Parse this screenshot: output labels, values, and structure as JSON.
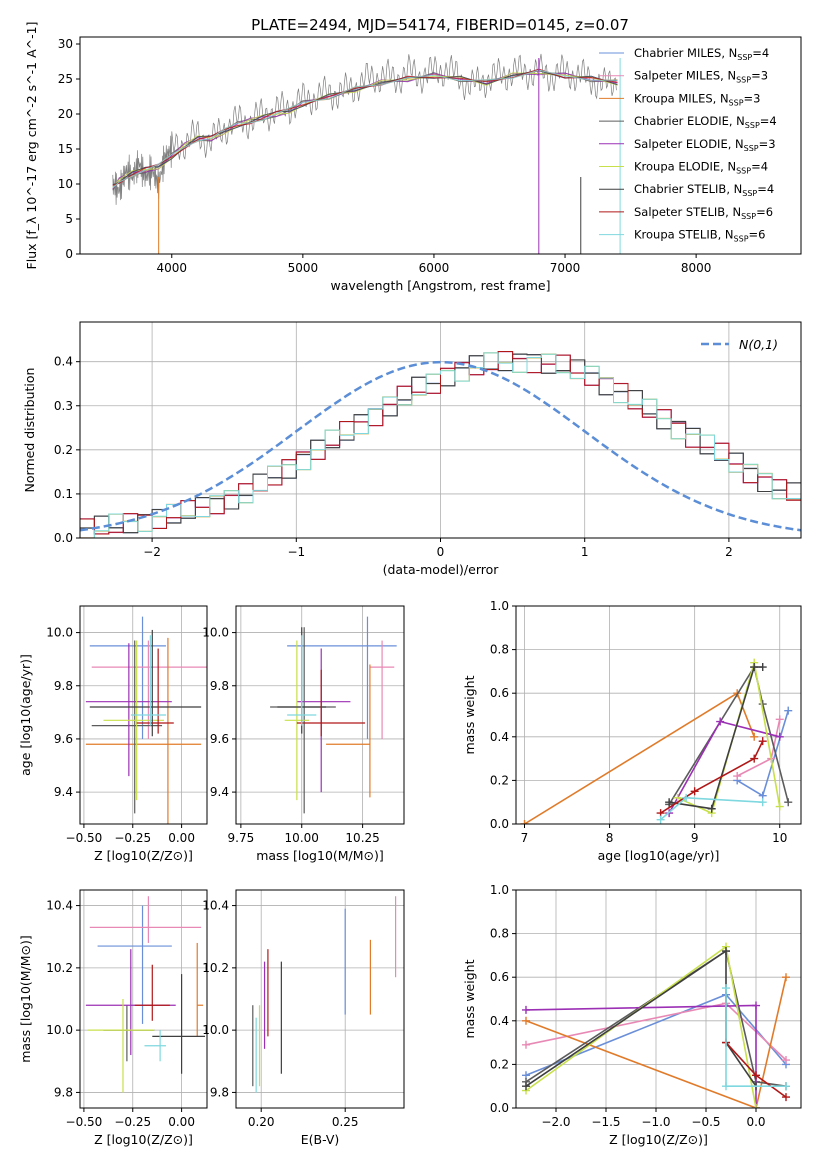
{
  "figure_title": "PLATE=2494, MJD=54174, FIBERID=0145, z=0.07",
  "chart_data": [
    {
      "id": "spectrum",
      "type": "line",
      "title": "PLATE=2494, MJD=54174, FIBERID=0145, z=0.07",
      "xlabel": "wavelength [Angstrom, rest frame]",
      "ylabel": "Flux [f_λ 10^-17 erg cm^-2 s^-1 A^-1]",
      "xlim": [
        3300,
        8800
      ],
      "ylim": [
        0,
        31
      ],
      "xticks": [
        4000,
        5000,
        6000,
        7000,
        8000
      ],
      "yticks": [
        0,
        5,
        10,
        15,
        20,
        25,
        30
      ],
      "grid": false,
      "legend_position": "right",
      "observed": {
        "color": "#7f7f7f",
        "x": [
          3550,
          3600,
          3650,
          3700,
          3750,
          3800,
          3850,
          3900,
          3950,
          4000,
          4100,
          4200,
          4300,
          4400,
          4500,
          4600,
          4700,
          4800,
          4900,
          5000,
          5100,
          5200,
          5300,
          5400,
          5500,
          5600,
          5700,
          5800,
          5900,
          6000,
          6100,
          6200,
          6300,
          6400,
          6500,
          6600,
          6700,
          6800,
          6900,
          7000,
          7100,
          7200,
          7300,
          7400
        ],
        "y": [
          10,
          9,
          12,
          11,
          13,
          11,
          12,
          10,
          14,
          15,
          16,
          17,
          16,
          18,
          19,
          19,
          20,
          20.5,
          21,
          22,
          22.5,
          23,
          23,
          24,
          25,
          25.5,
          25,
          26,
          25.5,
          26,
          26.5,
          25,
          24,
          25,
          25.5,
          26,
          26,
          26,
          25.5,
          26,
          25.5,
          25,
          24,
          25
        ]
      },
      "series": [
        {
          "name": "Chabrier MILES",
          "nssp": 4,
          "color": "#6a8fd8"
        },
        {
          "name": "Salpeter MILES",
          "nssp": 3,
          "color": "#e889b5"
        },
        {
          "name": "Kroupa MILES",
          "nssp": 3,
          "color": "#e07b2a"
        },
        {
          "name": "Chabrier ELODIE",
          "nssp": 4,
          "color": "#5c5c5c"
        },
        {
          "name": "Salpeter ELODIE",
          "nssp": 3,
          "color": "#9b30b5"
        },
        {
          "name": "Kroupa ELODIE",
          "nssp": 4,
          "color": "#c8e04a"
        },
        {
          "name": "Chabrier STELIB",
          "nssp": 4,
          "color": "#3f3f3f"
        },
        {
          "name": "Salpeter STELIB",
          "nssp": 6,
          "color": "#b01818"
        },
        {
          "name": "Kroupa STELIB",
          "nssp": 6,
          "color": "#7fd8df"
        }
      ],
      "model": {
        "x": [
          3550,
          3600,
          3700,
          3800,
          3900,
          4000,
          4100,
          4200,
          4300,
          4400,
          4500,
          4600,
          4700,
          4800,
          4900,
          5000,
          5200,
          5400,
          5600,
          5800,
          6000,
          6200,
          6400,
          6600,
          6800,
          7000,
          7200,
          7400
        ],
        "y": [
          9.5,
          10.5,
          11.5,
          12,
          12.5,
          14,
          15.5,
          16.5,
          16.5,
          17.5,
          18.5,
          19,
          19.5,
          20,
          20.5,
          21.5,
          22.5,
          23.5,
          24.5,
          25,
          25.5,
          25,
          24.5,
          25.5,
          26,
          25.5,
          25,
          24.5
        ]
      },
      "spikes": [
        3900,
        6800,
        7120,
        7420
      ]
    },
    {
      "id": "residuals",
      "type": "histogram",
      "xlabel": "(data-model)/error",
      "ylabel": "Normed distribution",
      "xlim": [
        -2.5,
        2.5
      ],
      "ylim": [
        0,
        0.49
      ],
      "xticks": [
        -2,
        -1,
        0,
        1,
        2
      ],
      "yticks": [
        0,
        0.1,
        0.2,
        0.3,
        0.4
      ],
      "grid": true,
      "legend_position": "top-right",
      "reference_curve": {
        "name": "N(0,1)",
        "color": "#5b8ed6",
        "mean": 0,
        "sigma": 1
      },
      "bin_width": 0.1,
      "bin_start": -2.5,
      "base_profile": [
        0.022,
        0.025,
        0.03,
        0.035,
        0.04,
        0.045,
        0.052,
        0.06,
        0.07,
        0.08,
        0.09,
        0.1,
        0.12,
        0.14,
        0.16,
        0.18,
        0.2,
        0.22,
        0.24,
        0.26,
        0.28,
        0.3,
        0.32,
        0.34,
        0.35,
        0.37,
        0.38,
        0.39,
        0.395,
        0.4,
        0.4,
        0.4,
        0.395,
        0.39,
        0.38,
        0.37,
        0.35,
        0.33,
        0.31,
        0.29,
        0.27,
        0.25,
        0.23,
        0.21,
        0.19,
        0.17,
        0.15,
        0.13,
        0.11,
        0.1,
        0.09,
        0.08,
        0.07,
        0.06,
        0.05,
        0.045,
        0.04,
        0.035,
        0.03,
        0.025
      ]
    },
    {
      "id": "age-vs-Z",
      "type": "errorbar",
      "xlabel": "Z [log10(Z/Z⊙)]",
      "ylabel": "age [log10(age/yr)]",
      "xlim": [
        -0.52,
        0.13
      ],
      "ylim": [
        9.28,
        10.1
      ],
      "xticks": [
        -0.5,
        -0.25,
        0.0
      ],
      "yticks": [
        9.4,
        9.6,
        9.8,
        10.0
      ],
      "grid": true,
      "points": [
        {
          "x": -0.2,
          "y": 9.95,
          "xerr": [
            0.27,
            0.12
          ],
          "yerr": [
            0.35,
            0.11
          ],
          "color": "#6a8fd8"
        },
        {
          "x": -0.17,
          "y": 9.87,
          "xerr": [
            0.29,
            0.31
          ],
          "yerr": [
            0.27,
            0.1
          ],
          "color": "#e889b5"
        },
        {
          "x": -0.07,
          "y": 9.58,
          "xerr": [
            0.42,
            0.17
          ],
          "yerr": [
            0.35,
            0.4
          ],
          "color": "#e07b2a"
        },
        {
          "x": -0.24,
          "y": 9.65,
          "xerr": [
            0.22,
            0.14
          ],
          "yerr": [
            0.33,
            0.32
          ],
          "color": "#5c5c5c"
        },
        {
          "x": -0.27,
          "y": 9.74,
          "xerr": [
            0.22,
            0.22
          ],
          "yerr": [
            0.28,
            0.22
          ],
          "color": "#9b30b5"
        },
        {
          "x": -0.23,
          "y": 9.67,
          "xerr": [
            0.17,
            0.14
          ],
          "yerr": [
            0.3,
            0.3
          ],
          "color": "#c8e04a"
        },
        {
          "x": -0.15,
          "y": 9.72,
          "xerr": [
            0.32,
            0.25
          ],
          "yerr": [
            0.11,
            0.29
          ],
          "color": "#3f3f3f"
        },
        {
          "x": -0.12,
          "y": 9.66,
          "xerr": [
            0.11,
            0.08
          ],
          "yerr": [
            0.04,
            0.28
          ],
          "color": "#b01818"
        },
        {
          "x": -0.16,
          "y": 9.69,
          "xerr": [
            0.1,
            0.08
          ],
          "yerr": [
            0.04,
            0.3
          ],
          "color": "#7fd8df"
        }
      ]
    },
    {
      "id": "age-vs-mass",
      "type": "errorbar",
      "xlabel": "mass [log10(M/M⊙)]",
      "ylabel": "",
      "xlim": [
        9.73,
        10.42
      ],
      "ylim": [
        9.28,
        10.1
      ],
      "xticks": [
        9.75,
        10.0,
        10.25
      ],
      "yticks": [
        9.4,
        9.6,
        9.8,
        10.0
      ],
      "grid": true,
      "points": [
        {
          "x": 10.27,
          "y": 9.95,
          "xerr": [
            0.33,
            0.12
          ],
          "yerr": [
            0.35,
            0.11
          ],
          "color": "#6a8fd8"
        },
        {
          "x": 10.33,
          "y": 9.87,
          "xerr": [
            0.05,
            0.05
          ],
          "yerr": [
            0.27,
            0.1
          ],
          "color": "#e889b5"
        },
        {
          "x": 10.28,
          "y": 9.58,
          "xerr": [
            0.18,
            0.0
          ],
          "yerr": [
            0.2,
            0.3
          ],
          "color": "#e07b2a"
        },
        {
          "x": 10.01,
          "y": 9.72,
          "xerr": [
            0.14,
            0.13
          ],
          "yerr": [
            0.4,
            0.3
          ],
          "color": "#5c5c5c"
        },
        {
          "x": 10.08,
          "y": 9.74,
          "xerr": [
            0.1,
            0.12
          ],
          "yerr": [
            0.34,
            0.2
          ],
          "color": "#9b30b5"
        },
        {
          "x": 9.98,
          "y": 9.67,
          "xerr": [
            0.05,
            0.05
          ],
          "yerr": [
            0.3,
            0.3
          ],
          "color": "#c8e04a"
        },
        {
          "x": 10.0,
          "y": 9.72,
          "xerr": [
            0.1,
            0.1
          ],
          "yerr": [
            0.1,
            0.3
          ],
          "color": "#3f3f3f"
        },
        {
          "x": 10.08,
          "y": 9.66,
          "xerr": [
            0.1,
            0.18
          ],
          "yerr": [
            0.05,
            0.2
          ],
          "color": "#b01818"
        },
        {
          "x": 10.0,
          "y": 9.69,
          "xerr": [
            0.06,
            0.06
          ],
          "yerr": [
            0.04,
            0.3
          ],
          "color": "#7fd8df"
        }
      ]
    },
    {
      "id": "weight-vs-age",
      "type": "line",
      "xlabel": "age [log10(age/yr)]",
      "ylabel": "mass weight",
      "xlim": [
        6.9,
        10.25
      ],
      "ylim": [
        0,
        1
      ],
      "xticks": [
        7,
        8,
        9,
        10
      ],
      "yticks": [
        0.0,
        0.2,
        0.4,
        0.6,
        0.8,
        1.0
      ],
      "grid": true,
      "series": [
        {
          "color": "#6a8fd8",
          "x": [
            9.5,
            9.8,
            10.1
          ],
          "y": [
            0.2,
            0.13,
            0.52
          ]
        },
        {
          "color": "#e889b5",
          "x": [
            9.5,
            9.9,
            10.0
          ],
          "y": [
            0.22,
            0.3,
            0.48
          ]
        },
        {
          "color": "#e07b2a",
          "x": [
            7.0,
            9.5,
            9.7
          ],
          "y": [
            0.0,
            0.6,
            0.4
          ]
        },
        {
          "color": "#5c5c5c",
          "x": [
            8.7,
            9.7,
            9.8,
            10.1
          ],
          "y": [
            0.09,
            0.72,
            0.55,
            0.1
          ]
        },
        {
          "color": "#9b30b5",
          "x": [
            8.7,
            9.3,
            10.0
          ],
          "y": [
            0.05,
            0.47,
            0.4
          ]
        },
        {
          "color": "#c8e04a",
          "x": [
            8.8,
            9.2,
            9.7,
            10.0
          ],
          "y": [
            0.12,
            0.05,
            0.74,
            0.08
          ]
        },
        {
          "color": "#3f3f3f",
          "x": [
            8.7,
            9.2,
            9.7,
            9.8
          ],
          "y": [
            0.1,
            0.07,
            0.72,
            0.72
          ]
        },
        {
          "color": "#b01818",
          "x": [
            8.6,
            9.0,
            9.7,
            9.8
          ],
          "y": [
            0.05,
            0.15,
            0.3,
            0.38
          ]
        },
        {
          "color": "#7fd8df",
          "x": [
            8.6,
            8.9,
            9.8
          ],
          "y": [
            0.02,
            0.12,
            0.1
          ]
        }
      ]
    },
    {
      "id": "mass-vs-Z",
      "type": "errorbar",
      "xlabel": "Z [log10(Z/Z⊙)]",
      "ylabel": "mass [log10(M/M⊙)]",
      "xlim": [
        -0.52,
        0.13
      ],
      "ylim": [
        9.75,
        10.45
      ],
      "xticks": [
        -0.5,
        -0.25,
        0.0
      ],
      "yticks": [
        9.8,
        10.0,
        10.2,
        10.4
      ],
      "grid": true,
      "points": [
        {
          "x": -0.2,
          "y": 10.27,
          "xerr": [
            0.23,
            0.15
          ],
          "yerr": [
            0.25,
            0.13
          ],
          "color": "#6a8fd8"
        },
        {
          "x": -0.17,
          "y": 10.33,
          "xerr": [
            0.3,
            0.27
          ],
          "yerr": [
            0.05,
            0.1
          ],
          "color": "#e889b5"
        },
        {
          "x": 0.08,
          "y": 10.08,
          "xerr": [
            0.0,
            0.03
          ],
          "yerr": [
            0.1,
            0.2
          ],
          "color": "#e07b2a"
        },
        {
          "x": -0.28,
          "y": 10.0,
          "xerr": [
            0.12,
            0.14
          ],
          "yerr": [
            0.1,
            0.08
          ],
          "color": "#5c5c5c"
        },
        {
          "x": -0.26,
          "y": 10.08,
          "xerr": [
            0.23,
            0.23
          ],
          "yerr": [
            0.16,
            0.18
          ],
          "color": "#9b30b5"
        },
        {
          "x": -0.3,
          "y": 10.0,
          "xerr": [
            0.18,
            0.16
          ],
          "yerr": [
            0.2,
            0.1
          ],
          "color": "#c8e04a"
        },
        {
          "x": 0.0,
          "y": 9.98,
          "xerr": [
            0.15,
            0.12
          ],
          "yerr": [
            0.12,
            0.2
          ],
          "color": "#3f3f3f"
        },
        {
          "x": -0.15,
          "y": 10.08,
          "xerr": [
            0.09,
            0.09
          ],
          "yerr": [
            0.05,
            0.13
          ],
          "color": "#b01818"
        },
        {
          "x": -0.11,
          "y": 9.95,
          "xerr": [
            0.08,
            0.03
          ],
          "yerr": [
            0.05,
            0.05
          ],
          "color": "#7fd8df"
        }
      ]
    },
    {
      "id": "mass-vs-EBV",
      "type": "errorbar",
      "xlabel": "E(B-V)",
      "ylabel": "",
      "xlim": [
        0.185,
        0.285
      ],
      "ylim": [
        9.75,
        10.45
      ],
      "xticks": [
        0.2,
        0.25
      ],
      "yticks": [
        9.8,
        10.0,
        10.2,
        10.4
      ],
      "grid": true,
      "points": [
        {
          "x": 0.25,
          "y": 10.22,
          "yerr": [
            0.17,
            0.17
          ],
          "color": "#6a8fd8"
        },
        {
          "x": 0.28,
          "y": 10.3,
          "yerr": [
            0.13,
            0.13
          ],
          "color": "#e889b5"
        },
        {
          "x": 0.265,
          "y": 10.17,
          "yerr": [
            0.12,
            0.12
          ],
          "color": "#e07b2a"
        },
        {
          "x": 0.195,
          "y": 9.95,
          "yerr": [
            0.13,
            0.13
          ],
          "color": "#5c5c5c"
        },
        {
          "x": 0.202,
          "y": 10.08,
          "yerr": [
            0.14,
            0.14
          ],
          "color": "#9b30b5"
        },
        {
          "x": 0.199,
          "y": 9.95,
          "yerr": [
            0.13,
            0.13
          ],
          "color": "#c8e04a"
        },
        {
          "x": 0.212,
          "y": 10.04,
          "yerr": [
            0.18,
            0.18
          ],
          "color": "#3f3f3f"
        },
        {
          "x": 0.204,
          "y": 10.12,
          "yerr": [
            0.14,
            0.14
          ],
          "color": "#b01818"
        },
        {
          "x": 0.197,
          "y": 9.92,
          "yerr": [
            0.12,
            0.12
          ],
          "color": "#7fd8df"
        }
      ]
    },
    {
      "id": "weight-vs-Z",
      "type": "line",
      "xlabel": "Z [log10(Z/Z⊙)]",
      "ylabel": "mass weight",
      "xlim": [
        -2.4,
        0.45
      ],
      "ylim": [
        0,
        1
      ],
      "xticks": [
        -2.0,
        -1.5,
        -1.0,
        -0.5,
        0.0
      ],
      "yticks": [
        0.0,
        0.2,
        0.4,
        0.6,
        0.8,
        1.0
      ],
      "grid": true,
      "series": [
        {
          "color": "#6a8fd8",
          "x": [
            -2.3,
            -0.3,
            0.3
          ],
          "y": [
            0.15,
            0.52,
            0.2
          ]
        },
        {
          "color": "#e889b5",
          "x": [
            -2.3,
            -0.3,
            0.3
          ],
          "y": [
            0.29,
            0.48,
            0.22
          ]
        },
        {
          "color": "#e07b2a",
          "x": [
            -2.3,
            0.0,
            0.3
          ],
          "y": [
            0.4,
            0.0,
            0.6
          ]
        },
        {
          "color": "#5c5c5c",
          "x": [
            -2.3,
            -0.3,
            0.0,
            0.3
          ],
          "y": [
            0.12,
            0.72,
            0.12,
            0.1
          ]
        },
        {
          "color": "#9b30b5",
          "x": [
            -2.3,
            0.0,
            0.0
          ],
          "y": [
            0.45,
            0.47,
            0.0
          ]
        },
        {
          "color": "#c8e04a",
          "x": [
            -2.3,
            -0.3,
            0.0
          ],
          "y": [
            0.08,
            0.74,
            0.0
          ]
        },
        {
          "color": "#3f3f3f",
          "x": [
            -2.3,
            -0.3,
            -0.3,
            0.0
          ],
          "y": [
            0.1,
            0.72,
            0.3,
            0.1
          ]
        },
        {
          "color": "#b01818",
          "x": [
            -0.3,
            0.0,
            0.3
          ],
          "y": [
            0.3,
            0.15,
            0.05
          ]
        },
        {
          "color": "#7fd8df",
          "x": [
            -0.3,
            -0.3,
            0.3
          ],
          "y": [
            0.55,
            0.1,
            0.1
          ]
        }
      ]
    }
  ]
}
